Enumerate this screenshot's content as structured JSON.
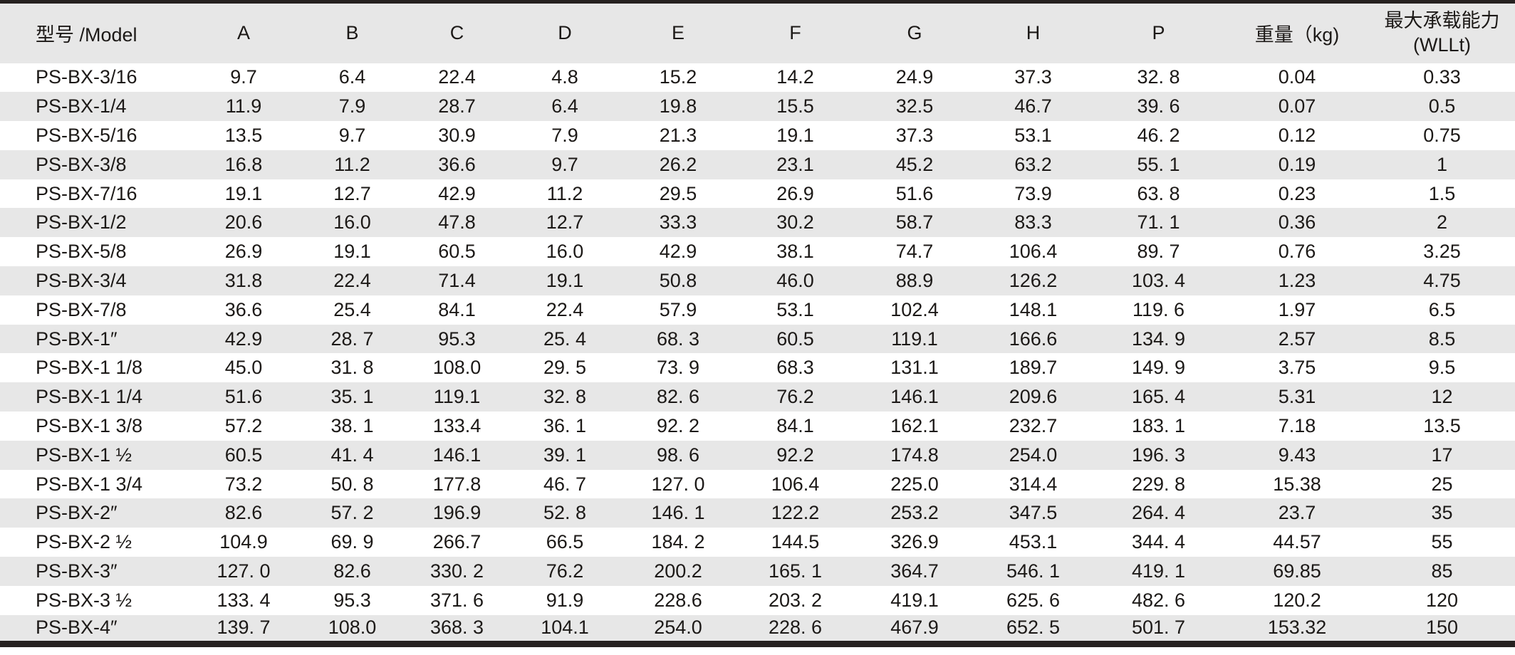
{
  "colors": {
    "stripe_gray": "#e7e7e7",
    "border_black": "#262120",
    "text": "#1c1917",
    "background": "#ffffff"
  },
  "table": {
    "columns": [
      {
        "label": "型号 /Model"
      },
      {
        "label": "A"
      },
      {
        "label": "B"
      },
      {
        "label": "C"
      },
      {
        "label": "D"
      },
      {
        "label": "E"
      },
      {
        "label": "F"
      },
      {
        "label": "G"
      },
      {
        "label": "H"
      },
      {
        "label": "P"
      },
      {
        "label": "重量（kg)"
      },
      {
        "label": "最大承载能力",
        "label2": "(WLLt)"
      }
    ],
    "rows": [
      [
        "PS-BX-3/16",
        "9.7",
        "6.4",
        "22.4",
        "4.8",
        "15.2",
        "14.2",
        "24.9",
        "37.3",
        "32. 8",
        "0.04",
        "0.33"
      ],
      [
        "PS-BX-1/4",
        "11.9",
        "7.9",
        "28.7",
        "6.4",
        "19.8",
        "15.5",
        "32.5",
        "46.7",
        "39. 6",
        "0.07",
        "0.5"
      ],
      [
        "PS-BX-5/16",
        "13.5",
        "9.7",
        "30.9",
        "7.9",
        "21.3",
        "19.1",
        "37.3",
        "53.1",
        "46. 2",
        "0.12",
        "0.75"
      ],
      [
        "PS-BX-3/8",
        "16.8",
        "11.2",
        "36.6",
        "9.7",
        "26.2",
        "23.1",
        "45.2",
        "63.2",
        "55. 1",
        "0.19",
        "1"
      ],
      [
        "PS-BX-7/16",
        "19.1",
        "12.7",
        "42.9",
        "11.2",
        "29.5",
        "26.9",
        "51.6",
        "73.9",
        "63. 8",
        "0.23",
        "1.5"
      ],
      [
        "PS-BX-1/2",
        "20.6",
        "16.0",
        "47.8",
        "12.7",
        "33.3",
        "30.2",
        "58.7",
        "83.3",
        "71. 1",
        "0.36",
        "2"
      ],
      [
        "PS-BX-5/8",
        "26.9",
        "19.1",
        "60.5",
        "16.0",
        "42.9",
        "38.1",
        "74.7",
        "106.4",
        "89. 7",
        "0.76",
        "3.25"
      ],
      [
        "PS-BX-3/4",
        "31.8",
        "22.4",
        "71.4",
        "19.1",
        "50.8",
        "46.0",
        "88.9",
        "126.2",
        "103. 4",
        "1.23",
        "4.75"
      ],
      [
        "PS-BX-7/8",
        "36.6",
        "25.4",
        "84.1",
        "22.4",
        "57.9",
        "53.1",
        "102.4",
        "148.1",
        "119. 6",
        "1.97",
        "6.5"
      ],
      [
        "PS-BX-1″",
        "42.9",
        "28. 7",
        "95.3",
        "25. 4",
        "68. 3",
        "60.5",
        "119.1",
        "166.6",
        "134. 9",
        "2.57",
        "8.5"
      ],
      [
        "PS-BX-1 1/8",
        "45.0",
        "31. 8",
        "108.0",
        "29. 5",
        "73. 9",
        "68.3",
        "131.1",
        "189.7",
        "149. 9",
        "3.75",
        "9.5"
      ],
      [
        "PS-BX-1 1/4",
        "51.6",
        "35. 1",
        "119.1",
        "32. 8",
        "82. 6",
        "76.2",
        "146.1",
        "209.6",
        "165. 4",
        "5.31",
        "12"
      ],
      [
        "PS-BX-1 3/8",
        "57.2",
        "38. 1",
        "133.4",
        "36. 1",
        "92. 2",
        "84.1",
        "162.1",
        "232.7",
        "183. 1",
        "7.18",
        "13.5"
      ],
      [
        "PS-BX-1 ½",
        "60.5",
        "41. 4",
        "146.1",
        "39. 1",
        "98. 6",
        "92.2",
        "174.8",
        "254.0",
        "196. 3",
        "9.43",
        "17"
      ],
      [
        "PS-BX-1 3/4",
        "73.2",
        "50. 8",
        "177.8",
        "46. 7",
        "127. 0",
        "106.4",
        "225.0",
        "314.4",
        "229. 8",
        "15.38",
        "25"
      ],
      [
        "PS-BX-2″",
        "82.6",
        "57. 2",
        "196.9",
        "52. 8",
        "146. 1",
        "122.2",
        "253.2",
        "347.5",
        "264. 4",
        "23.7",
        "35"
      ],
      [
        "PS-BX-2 ½",
        "104.9",
        "69. 9",
        "266.7",
        "66.5",
        "184. 2",
        "144.5",
        "326.9",
        "453.1",
        "344. 4",
        "44.57",
        "55"
      ],
      [
        "PS-BX-3″",
        "127. 0",
        "82.6",
        "330. 2",
        "76.2",
        "200.2",
        "165. 1",
        "364.7",
        "546. 1",
        "419. 1",
        "69.85",
        "85"
      ],
      [
        "PS-BX-3 ½",
        "133. 4",
        "95.3",
        "371. 6",
        "91.9",
        "228.6",
        "203. 2",
        "419.1",
        "625. 6",
        "482. 6",
        "120.2",
        "120"
      ],
      [
        "PS-BX-4″",
        "139. 7",
        "108.0",
        "368. 3",
        "104.1",
        "254.0",
        "228. 6",
        "467.9",
        "652. 5",
        "501. 7",
        "153.32",
        "150"
      ]
    ]
  }
}
